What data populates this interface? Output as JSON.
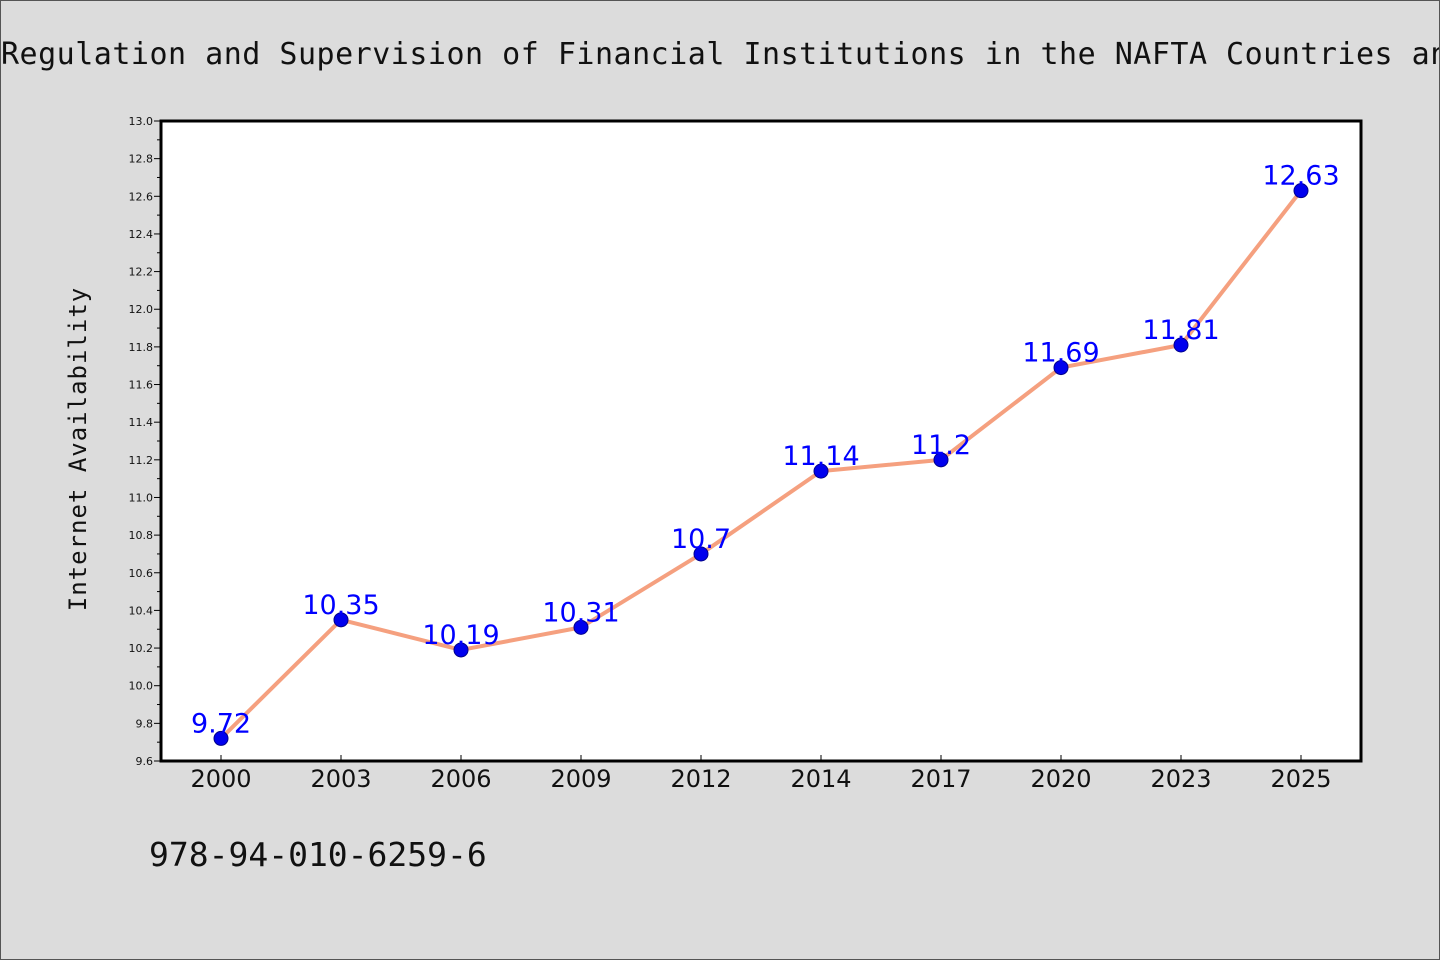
{
  "title": "Regulation and Supervision of Financial Institutions in the NAFTA Countries and",
  "footer_text": "978-94-010-6259-6",
  "colors": {
    "background": "#dcdcdc",
    "plot_background": "#ffffff",
    "line": "#f5a07f",
    "marker": "#0000ee",
    "data_label": "#0000ff"
  },
  "chart_data": {
    "type": "line",
    "title": "Regulation and Supervision of Financial Institutions in the NAFTA Countries and",
    "xlabel": "",
    "ylabel": "Internet Availability",
    "categories": [
      "2000",
      "2003",
      "2006",
      "2009",
      "2012",
      "2014",
      "2017",
      "2020",
      "2023",
      "2025"
    ],
    "series": [
      {
        "values": [
          9.72,
          10.35,
          10.19,
          10.31,
          10.7,
          11.14,
          11.2,
          11.69,
          11.81,
          12.63
        ],
        "labels": [
          "9.72",
          "10.35",
          "10.19",
          "10.31",
          "10.7",
          "11.14",
          "11.2",
          "11.69",
          "11.81",
          "12.63"
        ]
      }
    ],
    "ylim": [
      9.6,
      13.0
    ],
    "yticks": [
      "9.6",
      "9.8",
      "10.0",
      "10.2",
      "10.4",
      "10.6",
      "10.8",
      "11.0",
      "11.2",
      "11.4",
      "11.6",
      "11.8",
      "12.0",
      "12.2",
      "12.4",
      "12.6",
      "12.8",
      "13.0"
    ],
    "grid": false,
    "legend": "none"
  }
}
